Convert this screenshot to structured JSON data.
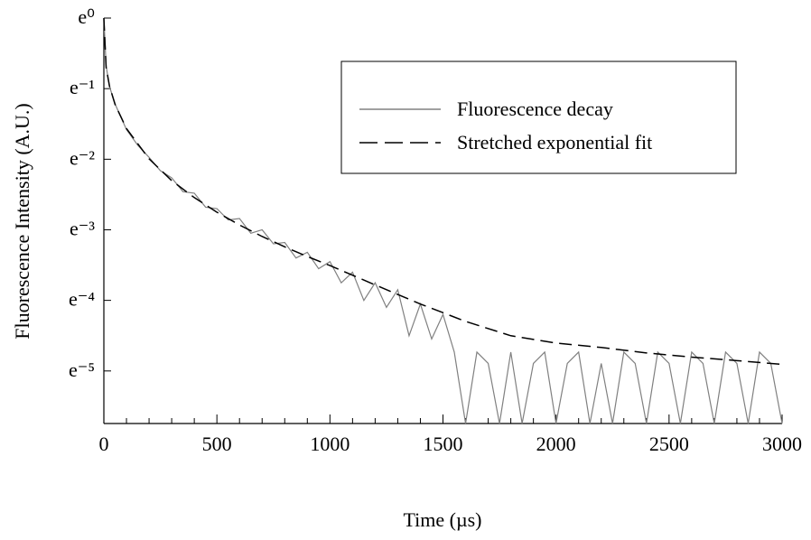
{
  "chart_data": {
    "type": "line",
    "xlabel": "Time (µs)",
    "ylabel": "Fluorescence Intensity (A.U.)",
    "xlim": [
      0,
      3000
    ],
    "xticks": [
      0,
      500,
      1000,
      1500,
      2000,
      2500,
      3000
    ],
    "xminorticks": [
      100,
      200,
      300,
      400,
      600,
      700,
      800,
      900,
      1100,
      1200,
      1300,
      1400,
      1600,
      1700,
      1800,
      1900,
      2100,
      2200,
      2300,
      2400,
      2600,
      2700,
      2800,
      2900
    ],
    "yscale": "log",
    "ylim": [
      0.0032,
      1
    ],
    "yticks": [
      {
        "value": 1,
        "label": "e⁰"
      },
      {
        "value": 0.3679,
        "label": "e⁻¹"
      },
      {
        "value": 0.1353,
        "label": "e⁻²"
      },
      {
        "value": 0.04979,
        "label": "e⁻³"
      },
      {
        "value": 0.01832,
        "label": "e⁻⁴"
      },
      {
        "value": 0.006738,
        "label": "e⁻⁵"
      }
    ],
    "legend": "upper right",
    "series": [
      {
        "name": "Fluorescence decay",
        "color": "#808080",
        "linestyle": "solid",
        "x": [
          0,
          10,
          25,
          50,
          100,
          150,
          200,
          250,
          300,
          350,
          400,
          450,
          500,
          550,
          600,
          650,
          700,
          750,
          800,
          850,
          900,
          950,
          1000,
          1050,
          1100,
          1150,
          1200,
          1250,
          1300,
          1350,
          1400,
          1450,
          1500,
          1550,
          1600,
          1650,
          1700,
          1750,
          1800,
          1850,
          1900,
          1950,
          2000,
          2050,
          2100,
          2150,
          2200,
          2250,
          2300,
          2350,
          2400,
          2450,
          2500,
          2550,
          2600,
          2650,
          2700,
          2750,
          2800,
          2850,
          2900,
          2950,
          3000
        ],
        "values": [
          1,
          0.507,
          0.379,
          0.295,
          0.206,
          0.165,
          0.139,
          0.115,
          0.104,
          0.0854,
          0.0837,
          0.0686,
          0.0672,
          0.0573,
          0.0584,
          0.0474,
          0.0498,
          0.0408,
          0.0416,
          0.0334,
          0.0362,
          0.0287,
          0.0317,
          0.0235,
          0.0273,
          0.0183,
          0.0235,
          0.0166,
          0.0213,
          0.0111,
          0.0174,
          0.0106,
          0.015,
          0.0088,
          0.0032,
          0.0088,
          0.0075,
          0.0032,
          0.0088,
          0.0032,
          0.0075,
          0.0088,
          0.0032,
          0.0075,
          0.0088,
          0.0032,
          0.0075,
          0.0032,
          0.0088,
          0.0075,
          0.0032,
          0.0088,
          0.0075,
          0.0032,
          0.0088,
          0.0075,
          0.0032,
          0.0088,
          0.0075,
          0.0032,
          0.0088,
          0.0075,
          0.0032
        ]
      },
      {
        "name": "Stretched exponential fit",
        "color": "#000000",
        "linestyle": "dashed",
        "x": [
          0,
          10,
          25,
          50,
          100,
          200,
          300,
          400,
          500,
          600,
          700,
          800,
          900,
          1000,
          1200,
          1400,
          1600,
          1800,
          2000,
          2200,
          2400,
          2600,
          2800,
          3000
        ],
        "values": [
          1,
          0.497,
          0.381,
          0.293,
          0.209,
          0.136,
          0.1,
          0.0786,
          0.0639,
          0.0533,
          0.0453,
          0.0391,
          0.0341,
          0.03,
          0.0228,
          0.0174,
          0.0136,
          0.0111,
          0.01,
          0.0094,
          0.0087,
          0.0082,
          0.0078,
          0.0074
        ]
      }
    ]
  }
}
